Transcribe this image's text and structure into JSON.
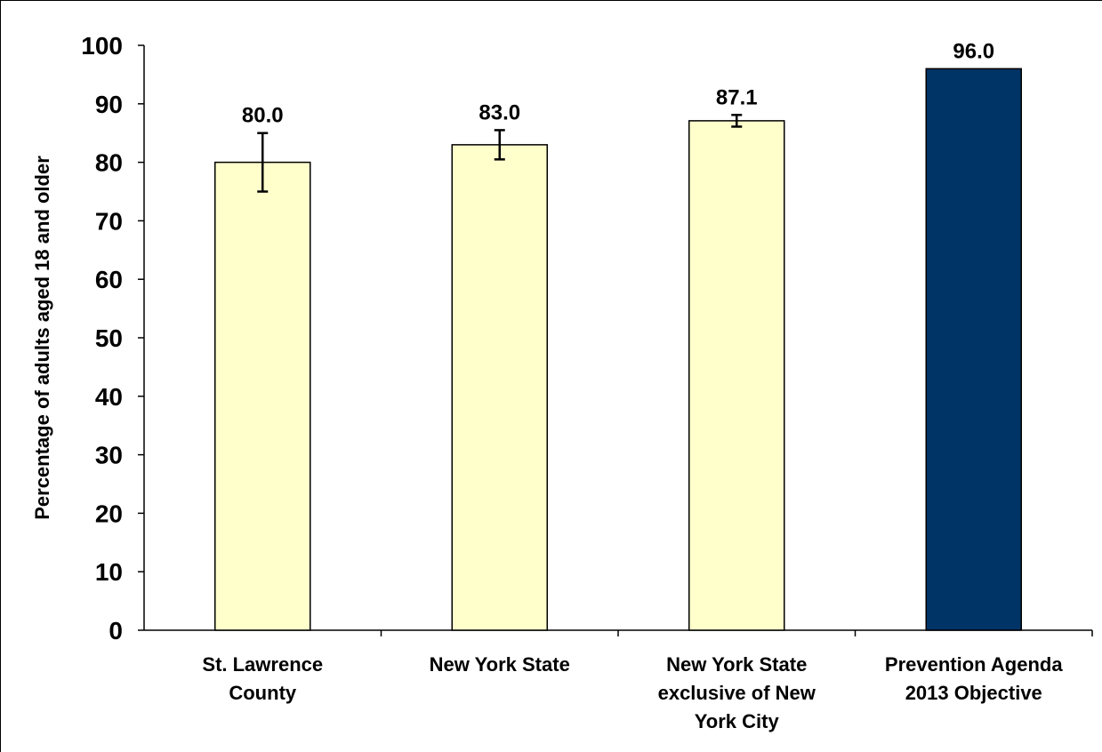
{
  "chart_data": {
    "type": "bar",
    "title": "",
    "xlabel": "",
    "ylabel": "Percentage of adults aged 18 and older",
    "ylim": [
      0,
      100
    ],
    "yticks": [
      0,
      10,
      20,
      30,
      40,
      50,
      60,
      70,
      80,
      90,
      100
    ],
    "grid": false,
    "legend": "none",
    "categories": [
      [
        "St. Lawrence",
        "County"
      ],
      [
        "New York State"
      ],
      [
        "New York State",
        "exclusive of New",
        "York City"
      ],
      [
        "Prevention Agenda",
        "2013 Objective"
      ]
    ],
    "values": [
      80.0,
      83.0,
      87.1,
      96.0
    ],
    "value_labels": [
      "80.0",
      "83.0",
      "87.1",
      "96.0"
    ],
    "error_bars": [
      {
        "low": 75.0,
        "high": 85.0
      },
      {
        "low": 80.5,
        "high": 85.5
      },
      {
        "low": 86.1,
        "high": 88.1
      },
      null
    ],
    "bar_colors": [
      "#FFFFCC",
      "#FFFFCC",
      "#FFFFCC",
      "#003366"
    ]
  }
}
